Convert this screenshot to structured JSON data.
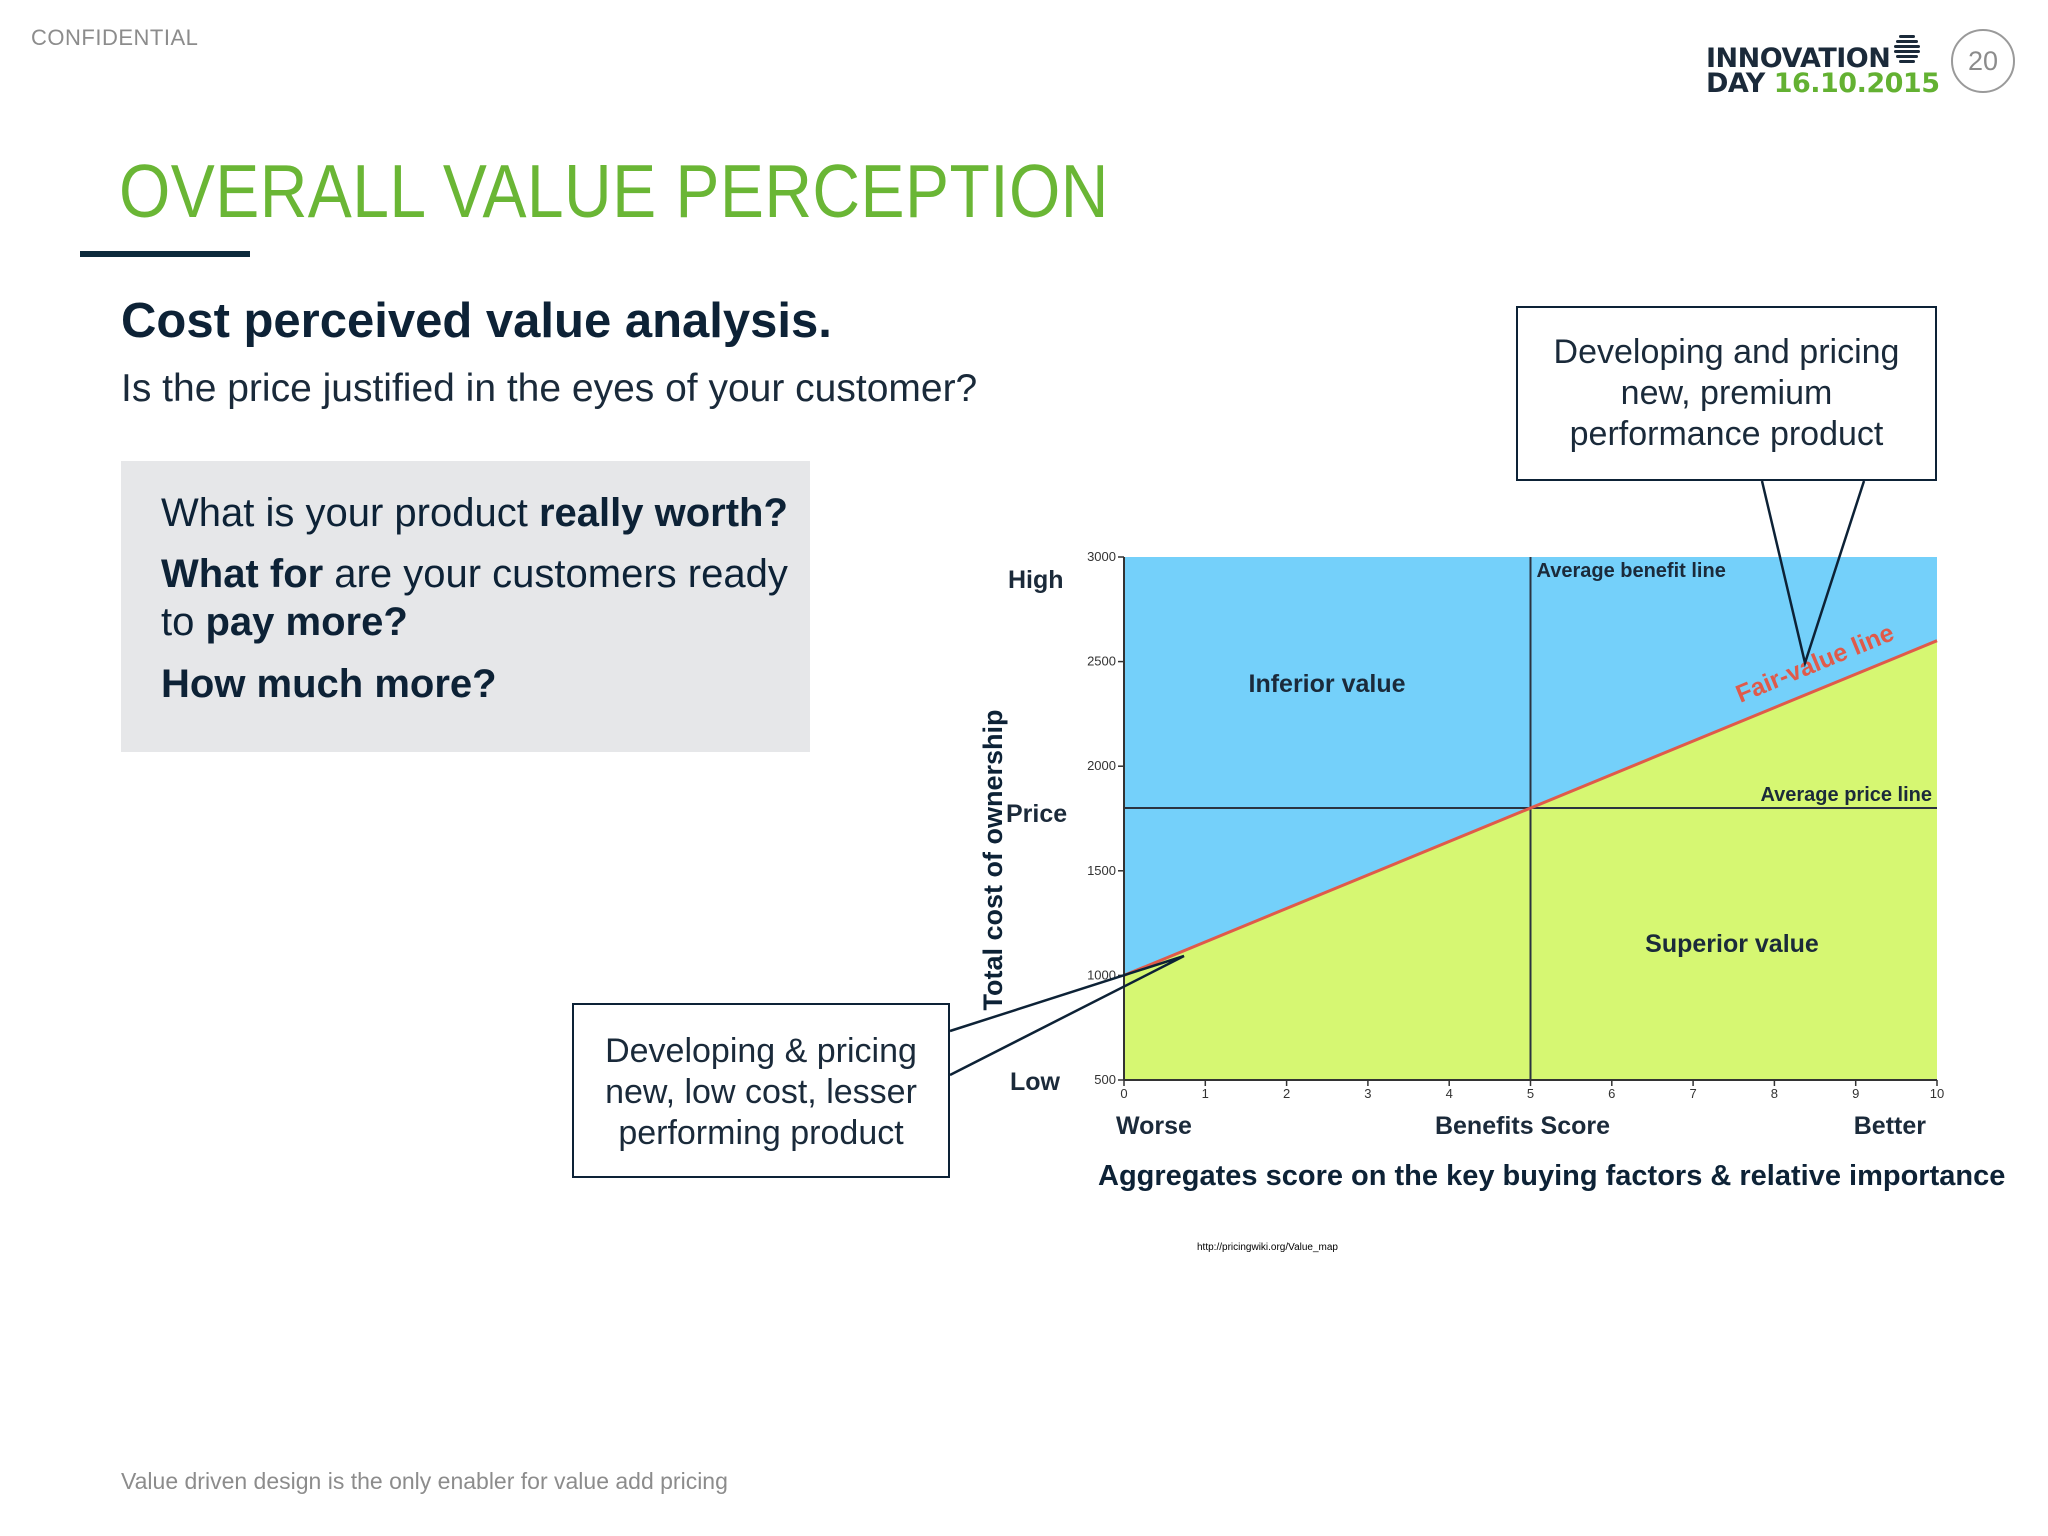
{
  "header": {
    "confidential": "CONFIDENTIAL",
    "logo_line1": "INNOVATION",
    "logo_line2_word": "DAY",
    "logo_line2_date": "16.10.2015",
    "page_number": "20"
  },
  "slide": {
    "title": "OVERALL VALUE PERCEPTION",
    "subheading": "Cost perceived value analysis.",
    "question": "Is the price justified in the eyes of your customer?",
    "box": {
      "l1a": "What is your product ",
      "l1b": "really worth?",
      "l2a": "What for",
      "l2b": " are your customers ready",
      "l3a": "to ",
      "l3b": "pay more?",
      "l4": "How much more?"
    },
    "callout_top": [
      "Developing and pricing",
      "new, premium",
      "performance product"
    ],
    "callout_bottom": [
      "Developing & pricing",
      "new, low cost, lesser",
      "performing product"
    ],
    "caption": "Aggregates score on the key buying factors & relative importance",
    "source": "http://pricingwiki.org/Value_map",
    "footer": "Value driven design is the only enabler for value add pricing"
  },
  "colors": {
    "title_green": "#6ab635",
    "navy": "#0d2236",
    "inferior_fill": "#74d0fa",
    "superior_fill": "#d6f772",
    "fair_line": "#e05a4a"
  },
  "chart_data": {
    "type": "area",
    "x_ticks": [
      "0",
      "1",
      "2",
      "3",
      "4",
      "5",
      "6",
      "7",
      "8",
      "9",
      "10"
    ],
    "y_ticks": [
      "500",
      "1000",
      "1500",
      "2000",
      "2500",
      "3000"
    ],
    "xlim": [
      0,
      10
    ],
    "ylim": [
      500,
      3000
    ],
    "xlabel": "Benefits Score",
    "x_low_label": "Worse",
    "x_high_label": "Better",
    "ylabel": "Total cost of ownership",
    "y_high_label": "High",
    "y_mid_label": "Price",
    "y_low_label": "Low",
    "fair_value_line": {
      "name": "Fair-value line",
      "x": [
        0,
        10
      ],
      "y": [
        1000,
        2600
      ]
    },
    "average_price_line": {
      "name": "Average price line",
      "y": 1800
    },
    "average_benefit_line": {
      "name": "Average benefit line",
      "x": 5
    },
    "regions": {
      "above": "Inferior value",
      "below": "Superior value"
    }
  }
}
